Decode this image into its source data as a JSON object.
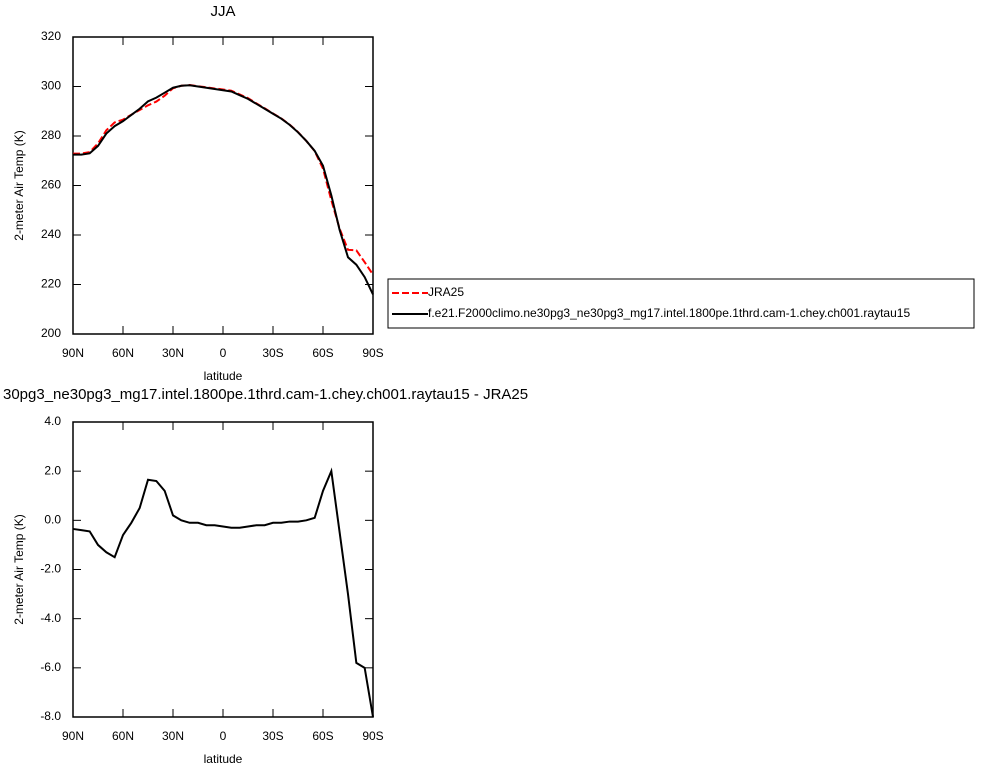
{
  "chart_data": [
    {
      "type": "line",
      "title": "JJA",
      "xlabel": "latitude",
      "ylabel": "2-meter Air Temp (K)",
      "x": [
        90,
        85,
        80,
        75,
        70,
        65,
        60,
        55,
        50,
        45,
        40,
        35,
        30,
        25,
        20,
        15,
        10,
        5,
        0,
        -5,
        -10,
        -15,
        -20,
        -25,
        -30,
        -35,
        -40,
        -45,
        -50,
        -55,
        -60,
        -65,
        -70,
        -75,
        -80,
        -85,
        -90
      ],
      "xlim": [
        90,
        -90
      ],
      "xticks": [
        {
          "value": 90,
          "label": "90N"
        },
        {
          "value": 60,
          "label": "60N"
        },
        {
          "value": 30,
          "label": "30N"
        },
        0,
        {
          "value": -30,
          "label": "30S"
        },
        {
          "value": -60,
          "label": "60S"
        },
        {
          "value": -90,
          "label": "90S"
        }
      ],
      "ylim": [
        200,
        320
      ],
      "yticks": [
        200,
        220,
        240,
        260,
        280,
        300,
        320
      ],
      "legend": "right",
      "series": [
        {
          "name": "JRA25",
          "color": "#ff0000",
          "dashed": true,
          "values": [
            272.9,
            272.9,
            273.5,
            277,
            282.3,
            285.5,
            286.6,
            288.6,
            290.5,
            292.4,
            293.9,
            296.3,
            299.3,
            300.3,
            300.6,
            300.1,
            299.7,
            299.2,
            298.8,
            298.3,
            296.8,
            295.3,
            293.2,
            291.2,
            289.1,
            287.1,
            284.6,
            281.6,
            278,
            273.9,
            266.8,
            254,
            242.5,
            234,
            233.8,
            229,
            224
          ]
        },
        {
          "name": "f.e21.F2000climo.ne30pg3_ne30pg3_mg17.intel.1800pe.1thrd.cam-1.chey.ch001.raytau15",
          "color": "#000000",
          "dashed": false,
          "values": [
            272.5,
            272.5,
            273,
            276,
            281,
            284,
            286,
            288.5,
            291,
            294,
            295.5,
            297.5,
            299.5,
            300.3,
            300.5,
            300,
            299.5,
            299,
            298.5,
            298,
            296.5,
            295,
            293,
            291,
            289,
            287,
            284.5,
            281.5,
            278,
            274,
            268,
            256,
            242,
            231,
            228,
            223,
            216
          ]
        }
      ]
    },
    {
      "type": "line",
      "title": "30pg3_ne30pg3_mg17.intel.1800pe.1thrd.cam-1.chey.ch001.raytau15 - JRA25",
      "xlabel": "latitude",
      "ylabel": "2-meter Air Temp (K)",
      "x": [
        90,
        85,
        80,
        75,
        70,
        65,
        60,
        55,
        50,
        45,
        40,
        35,
        30,
        25,
        20,
        15,
        10,
        5,
        0,
        -5,
        -10,
        -15,
        -20,
        -25,
        -30,
        -35,
        -40,
        -45,
        -50,
        -55,
        -60,
        -65,
        -70,
        -75,
        -80,
        -85,
        -90
      ],
      "xlim": [
        90,
        -90
      ],
      "xticks": [
        {
          "value": 90,
          "label": "90N"
        },
        {
          "value": 60,
          "label": "60N"
        },
        {
          "value": 30,
          "label": "30N"
        },
        0,
        {
          "value": -30,
          "label": "30S"
        },
        {
          "value": -60,
          "label": "60S"
        },
        {
          "value": -90,
          "label": "90S"
        }
      ],
      "ylim": [
        -8,
        4
      ],
      "yticks": [
        {
          "value": -8,
          "label": "-8.0"
        },
        {
          "value": -6,
          "label": "-6.0"
        },
        {
          "value": -4,
          "label": "-4.0"
        },
        {
          "value": -2,
          "label": "-2.0"
        },
        {
          "value": 0,
          "label": "0.0"
        },
        {
          "value": 2,
          "label": "2.0"
        },
        {
          "value": 4,
          "label": "4.0"
        }
      ],
      "series": [
        {
          "color": "#000000",
          "dashed": false,
          "values": [
            -0.35,
            -0.4,
            -0.45,
            -1.0,
            -1.3,
            -1.5,
            -0.6,
            -0.1,
            0.5,
            1.65,
            1.6,
            1.2,
            0.2,
            0.0,
            -0.1,
            -0.1,
            -0.2,
            -0.2,
            -0.25,
            -0.3,
            -0.3,
            -0.25,
            -0.2,
            -0.2,
            -0.1,
            -0.1,
            -0.05,
            -0.05,
            0.0,
            0.1,
            1.2,
            2.0,
            -0.5,
            -3.0,
            -5.8,
            -6.0,
            -8.0
          ]
        }
      ]
    }
  ]
}
